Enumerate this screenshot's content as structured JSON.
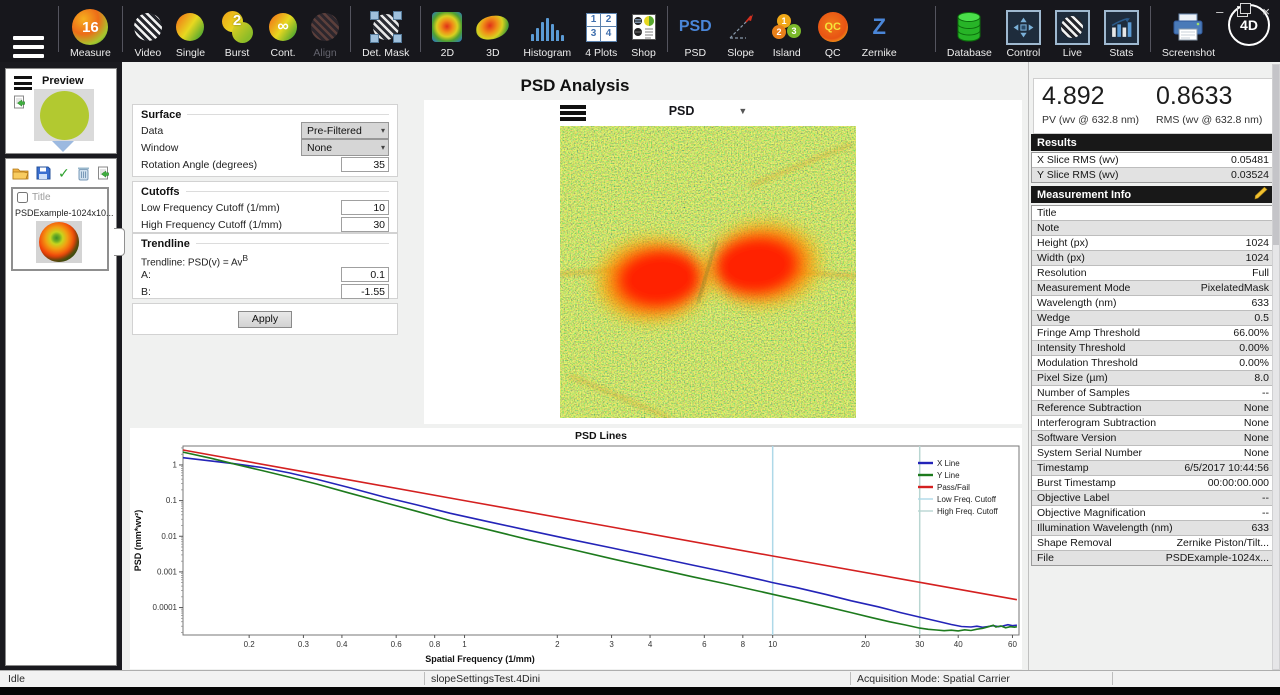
{
  "window": {
    "controls": {
      "minimize": "–",
      "close": "×"
    }
  },
  "colors": {
    "accent_blue": "#4a86d8",
    "header_bg": "#181818",
    "pencil_gold": "#e8b820",
    "toolbar_bg": "#17171c"
  },
  "toolbar": {
    "logo": "4D",
    "groups": [
      {
        "items": [
          {
            "id": "menu",
            "label": "",
            "icon": "hamburger-icon"
          }
        ]
      },
      {
        "items": [
          {
            "id": "measure",
            "label": "Measure",
            "icon": "measure-icon",
            "glyph": "16"
          }
        ]
      },
      {
        "items": [
          {
            "id": "video",
            "label": "Video",
            "icon": "video-icon"
          },
          {
            "id": "single",
            "label": "Single",
            "icon": "single-icon"
          },
          {
            "id": "burst",
            "label": "Burst",
            "icon": "burst-icon",
            "glyph": "2"
          },
          {
            "id": "cont",
            "label": "Cont.",
            "icon": "continuous-icon",
            "glyph": "∞"
          },
          {
            "id": "align",
            "label": "Align",
            "icon": "align-icon",
            "disabled": true
          }
        ]
      },
      {
        "items": [
          {
            "id": "detmask",
            "label": "Det. Mask",
            "icon": "detector-mask-icon"
          }
        ]
      },
      {
        "items": [
          {
            "id": "2d",
            "label": "2D",
            "icon": "2d-view-icon"
          },
          {
            "id": "3d",
            "label": "3D",
            "icon": "3d-view-icon"
          },
          {
            "id": "histogram",
            "label": "Histogram",
            "icon": "histogram-icon"
          },
          {
            "id": "4plots",
            "label": "4 Plots",
            "icon": "four-plots-icon",
            "glyphs": [
              "1",
              "2",
              "3",
              "4"
            ]
          },
          {
            "id": "shop",
            "label": "Shop",
            "icon": "shop-icon"
          }
        ]
      },
      {
        "items": [
          {
            "id": "psd",
            "label": "PSD",
            "icon": "psd-text-icon",
            "glyph": "PSD"
          },
          {
            "id": "slope",
            "label": "Slope",
            "icon": "slope-icon"
          },
          {
            "id": "island",
            "label": "Island",
            "icon": "island-icon",
            "glyphs": [
              "1",
              "2",
              "3"
            ]
          },
          {
            "id": "qc",
            "label": "QC",
            "icon": "qc-icon",
            "glyph": "QC"
          },
          {
            "id": "zernike",
            "label": "Zernike",
            "icon": "zernike-icon",
            "glyph": "Z"
          }
        ]
      },
      {
        "items": [
          {
            "id": "database",
            "label": "Database",
            "icon": "database-icon"
          },
          {
            "id": "control",
            "label": "Control",
            "icon": "control-icon"
          },
          {
            "id": "live",
            "label": "Live",
            "icon": "live-icon"
          },
          {
            "id": "stats",
            "label": "Stats",
            "icon": "stats-icon"
          }
        ]
      },
      {
        "items": [
          {
            "id": "screenshot",
            "label": "Screenshot",
            "icon": "screenshot-icon"
          }
        ]
      }
    ]
  },
  "sidebar": {
    "preview": {
      "title": "Preview"
    },
    "files": {
      "title_checkbox_label": "Title",
      "items": [
        {
          "name": "PSDExample-1024x10..."
        }
      ]
    }
  },
  "main": {
    "title": "PSD Analysis",
    "surface": {
      "header": "Surface",
      "data_label": "Data",
      "data_value": "Pre-Filtered",
      "window_label": "Window",
      "window_value": "None",
      "rotation_label": "Rotation Angle (degrees)",
      "rotation_value": "35"
    },
    "cutoffs": {
      "header": "Cutoffs",
      "low_label": "Low Frequency Cutoff (1/mm)",
      "low_value": "10",
      "high_label": "High Frequency Cutoff (1/mm)",
      "high_value": "30"
    },
    "trendline": {
      "header": "Trendline",
      "formula_prefix": "Trendline: PSD(v) = Av",
      "formula_sup": "B",
      "a_label": "A:",
      "a_value": "0.1",
      "b_label": "B:",
      "b_value": "-1.55"
    },
    "apply_label": "Apply",
    "psd_panel": {
      "title": "PSD"
    }
  },
  "results_panel": {
    "pv_value": "4.892",
    "pv_label": "PV (wv @ 632.8 nm)",
    "rms_value": "0.8633",
    "rms_label": "RMS (wv @ 632.8 nm)",
    "results_header": "Results",
    "rows": [
      [
        "X Slice RMS (wv)",
        "0.05481"
      ],
      [
        "Y Slice RMS (wv)",
        "0.03524"
      ]
    ]
  },
  "measurement_info": {
    "header": "Measurement Info",
    "rows": [
      [
        "Title",
        ""
      ],
      [
        "Note",
        ""
      ],
      [
        "Height (px)",
        "1024"
      ],
      [
        "Width (px)",
        "1024"
      ],
      [
        "Resolution",
        "Full"
      ],
      [
        "Measurement Mode",
        "PixelatedMask"
      ],
      [
        "Wavelength (nm)",
        "633"
      ],
      [
        "Wedge",
        "0.5"
      ],
      [
        "Fringe Amp Threshold",
        "66.00%"
      ],
      [
        "Intensity Threshold",
        "0.00%"
      ],
      [
        "Modulation Threshold",
        "0.00%"
      ],
      [
        "Pixel Size (µm)",
        "8.0"
      ],
      [
        "Number of Samples",
        "--"
      ],
      [
        "Reference Subtraction",
        "None"
      ],
      [
        "Interferogram Subtraction",
        "None"
      ],
      [
        "Software Version",
        "None"
      ],
      [
        "System Serial Number",
        "None"
      ],
      [
        "Timestamp",
        "6/5/2017 10:44:56"
      ],
      [
        "Burst Timestamp",
        "00:00:00.000"
      ],
      [
        "Objective Label",
        "--"
      ],
      [
        "Objective Magnification",
        "--"
      ],
      [
        "Illumination Wavelength (nm)",
        "633"
      ],
      [
        "Shape Removal",
        "Zernike Piston/Tilt..."
      ],
      [
        "File",
        "PSDExample-1024x..."
      ]
    ]
  },
  "status_bar": {
    "items": [
      "Idle",
      "slopeSettingsTest.4Dini",
      "Acquisition Mode: Spatial Carrier"
    ]
  },
  "chart_data": {
    "type": "line",
    "title": "PSD Lines",
    "xlabel": "Spatial Frequency (1/mm)",
    "ylabel": "PSD (mm*wv²)",
    "x_scale": "log",
    "y_scale": "log",
    "xlim": [
      0.122,
      63
    ],
    "ylim": [
      1.7e-05,
      3.4
    ],
    "x_ticks": [
      0.2,
      0.3,
      0.4,
      0.6,
      0.8,
      1,
      2,
      3,
      4,
      6,
      8,
      10,
      20,
      30,
      40,
      60
    ],
    "y_ticks": [
      1,
      0.1,
      0.01,
      0.001,
      0.0001
    ],
    "grid": false,
    "legend_position": "top-right",
    "cutoffs": [
      {
        "label": "Low Freq. Cutoff",
        "x": 10,
        "color": "#aed9e8"
      },
      {
        "label": "High Freq. Cutoff",
        "x": 30,
        "color": "#b9d6d2"
      }
    ],
    "series": [
      {
        "name": "X Line",
        "color": "#2424b8",
        "points": [
          [
            0.122,
            1.6
          ],
          [
            0.15,
            1.3
          ],
          [
            0.18,
            1.08
          ],
          [
            0.22,
            0.85
          ],
          [
            0.27,
            0.6
          ],
          [
            0.33,
            0.4
          ],
          [
            0.42,
            0.235
          ],
          [
            0.55,
            0.125
          ],
          [
            0.7,
            0.076
          ],
          [
            0.9,
            0.044
          ],
          [
            1.2,
            0.0255
          ],
          [
            1.6,
            0.0148
          ],
          [
            2.2,
            0.0082
          ],
          [
            3,
            0.0047
          ],
          [
            4,
            0.0028
          ],
          [
            5.5,
            0.00155
          ],
          [
            7,
            0.001
          ],
          [
            9,
            0.00062
          ],
          [
            10,
            0.0005
          ],
          [
            12,
            0.00036
          ],
          [
            15,
            0.00023
          ],
          [
            18,
            0.000155
          ],
          [
            22,
            0.000105
          ],
          [
            26,
            7.2e-05
          ],
          [
            30,
            5.4e-05
          ],
          [
            34,
            4.2e-05
          ],
          [
            38,
            3.35e-05
          ],
          [
            41,
            2.95e-05
          ],
          [
            44,
            2.85e-05
          ],
          [
            46,
            3e-05
          ],
          [
            48,
            2.8e-05
          ],
          [
            50,
            2.95e-05
          ],
          [
            52,
            3.1e-05
          ],
          [
            54,
            2.9e-05
          ],
          [
            56,
            3.05e-05
          ],
          [
            58,
            3.3e-05
          ],
          [
            60,
            3.1e-05
          ],
          [
            62,
            3.2e-05
          ]
        ]
      },
      {
        "name": "Y Line",
        "color": "#1d7a1d",
        "points": [
          [
            0.122,
            2.3
          ],
          [
            0.15,
            1.55
          ],
          [
            0.18,
            1.05
          ],
          [
            0.22,
            0.7
          ],
          [
            0.27,
            0.455
          ],
          [
            0.33,
            0.295
          ],
          [
            0.42,
            0.165
          ],
          [
            0.55,
            0.088
          ],
          [
            0.7,
            0.05
          ],
          [
            0.9,
            0.0275
          ],
          [
            1.2,
            0.0152
          ],
          [
            1.6,
            0.0082
          ],
          [
            2.2,
            0.0044
          ],
          [
            3,
            0.00235
          ],
          [
            4,
            0.00135
          ],
          [
            5.5,
            0.00073
          ],
          [
            7,
            0.00047
          ],
          [
            9,
            0.00029
          ],
          [
            10,
            0.000235
          ],
          [
            12,
            0.000165
          ],
          [
            15,
            0.000105
          ],
          [
            18,
            7.2e-05
          ],
          [
            21,
            5.2e-05
          ],
          [
            24,
            4e-05
          ],
          [
            27,
            3.25e-05
          ],
          [
            30,
            2.65e-05
          ],
          [
            32,
            2.45e-05
          ],
          [
            34,
            2.35e-05
          ],
          [
            36,
            2.25e-05
          ],
          [
            38,
            2.32e-05
          ],
          [
            40,
            2.22e-05
          ],
          [
            42,
            2.38e-05
          ],
          [
            44,
            2.28e-05
          ],
          [
            46,
            2.48e-05
          ],
          [
            48,
            2.6e-05
          ],
          [
            50,
            2.88e-05
          ],
          [
            52,
            3.2e-05
          ],
          [
            53,
            2.85e-05
          ],
          [
            55,
            3.05e-05
          ],
          [
            57,
            2.7e-05
          ],
          [
            59,
            2.9e-05
          ],
          [
            61,
            2.82e-05
          ],
          [
            62,
            2.9e-05
          ]
        ]
      },
      {
        "name": "Pass/Fail",
        "color": "#d42020",
        "points": [
          [
            0.122,
            2.62
          ],
          [
            0.3,
            0.645
          ],
          [
            1,
            0.1
          ],
          [
            3,
            0.01817
          ],
          [
            10,
            0.0028
          ],
          [
            30,
            0.00051
          ],
          [
            62,
            0.000166
          ]
        ]
      }
    ]
  }
}
